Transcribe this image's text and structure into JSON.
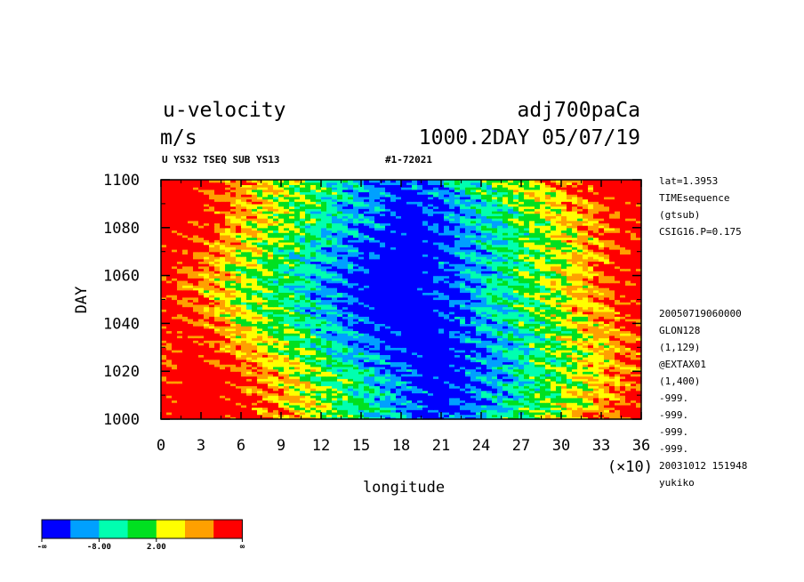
{
  "header": {
    "variable": "u-velocity",
    "units": "m/s",
    "experiment": "adj700paCa",
    "time_stamp": "1000.2DAY 05/07/19",
    "info_line": "U YS32 TSEQ SUB YS13",
    "run_id": "#1-72021"
  },
  "chart_data": {
    "type": "heatmap",
    "xlabel": "longitude",
    "ylabel": "DAY",
    "x_multiplier_label": "(×10)",
    "xlim": [
      0,
      36
    ],
    "ylim": [
      1000,
      1100
    ],
    "x_ticks": [
      "0",
      "3",
      "6",
      "9",
      "12",
      "15",
      "18",
      "21",
      "24",
      "27",
      "30",
      "33",
      "36"
    ],
    "y_ticks": [
      "1000",
      "1020",
      "1040",
      "1060",
      "1080",
      "1100"
    ],
    "color_levels": [
      "#0000ff",
      "#00a0ff",
      "#00ffb0",
      "#00e020",
      "#ffff00",
      "#ffa000",
      "#ff0000"
    ],
    "colorbar_labels": [
      "-∞",
      "-8.00",
      "2.00",
      "∞"
    ]
  },
  "side_info": {
    "top": [
      "lat=1.3953",
      "TIMEsequence",
      "(gtsub)",
      "CSIG16.P=0.175"
    ],
    "bottom": [
      "20050719060000",
      "GLON128",
      "(1,129)",
      "@EXTAX01",
      "(1,400)",
      "-999.",
      "-999.",
      "-999.",
      "-999.",
      "20031012 151948",
      "yukiko"
    ]
  }
}
